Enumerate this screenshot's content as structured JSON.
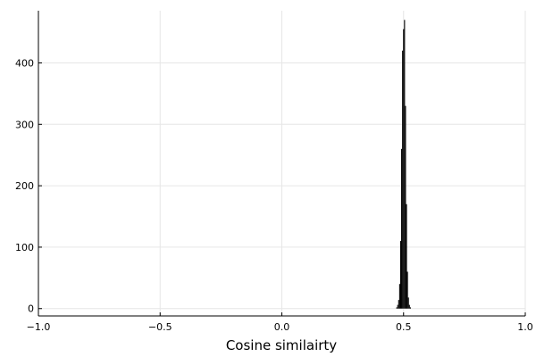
{
  "chart_data": {
    "type": "histogram",
    "title": "",
    "xlabel": "Cosine similairty",
    "ylabel": "",
    "xlim": [
      -1.0,
      1.0
    ],
    "ylim": [
      -12,
      485
    ],
    "grid": true,
    "legend": "none",
    "x_ticks": [
      -1.0,
      -0.5,
      0.0,
      0.5,
      1.0
    ],
    "x_tick_labels": [
      "−1.0",
      "−0.5",
      "0.0",
      "0.5",
      "1.0"
    ],
    "y_ticks": [
      0,
      100,
      200,
      300,
      400
    ],
    "y_tick_labels": [
      "0",
      "100",
      "200",
      "300",
      "400"
    ],
    "bar_color": "#000000",
    "grid_color": "#e6e6e6",
    "axis_color": "#000000",
    "bins": [
      {
        "x0": 0.47,
        "x1": 0.474,
        "count": 2
      },
      {
        "x0": 0.474,
        "x1": 0.478,
        "count": 6
      },
      {
        "x0": 0.478,
        "x1": 0.482,
        "count": 14
      },
      {
        "x0": 0.482,
        "x1": 0.486,
        "count": 40
      },
      {
        "x0": 0.486,
        "x1": 0.49,
        "count": 110
      },
      {
        "x0": 0.49,
        "x1": 0.494,
        "count": 260
      },
      {
        "x0": 0.494,
        "x1": 0.498,
        "count": 420
      },
      {
        "x0": 0.498,
        "x1": 0.502,
        "count": 455
      },
      {
        "x0": 0.502,
        "x1": 0.506,
        "count": 470
      },
      {
        "x0": 0.506,
        "x1": 0.51,
        "count": 330
      },
      {
        "x0": 0.51,
        "x1": 0.514,
        "count": 170
      },
      {
        "x0": 0.514,
        "x1": 0.518,
        "count": 60
      },
      {
        "x0": 0.518,
        "x1": 0.522,
        "count": 18
      },
      {
        "x0": 0.522,
        "x1": 0.526,
        "count": 6
      },
      {
        "x0": 0.526,
        "x1": 0.53,
        "count": 2
      }
    ]
  }
}
